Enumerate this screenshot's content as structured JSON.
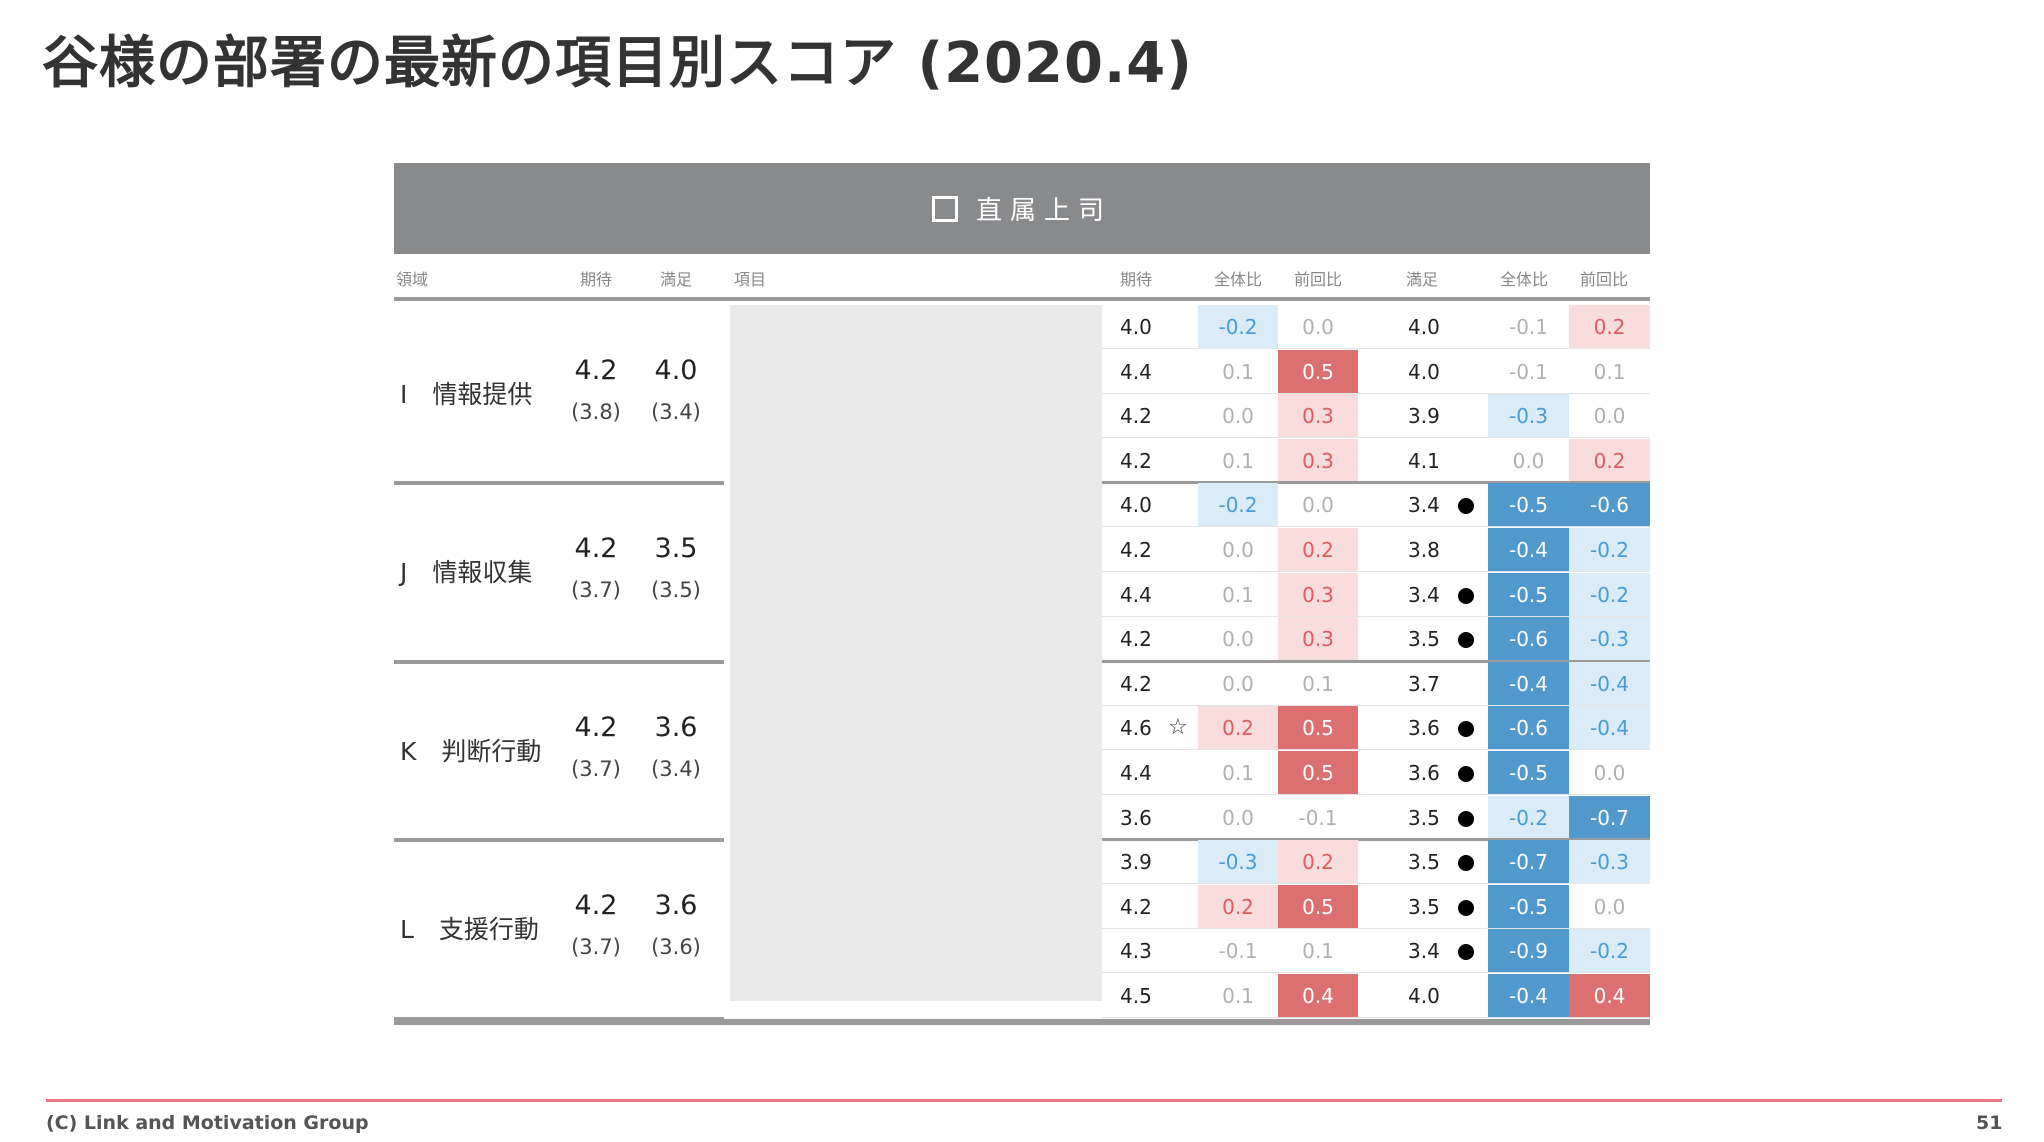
{
  "title": "谷様の部署の最新の項目別スコア (2020.4)",
  "banner": "直属上司",
  "headers": {
    "area": "領域",
    "exp": "期待",
    "sat": "満足",
    "item": "項目",
    "exp2": "期待",
    "total1": "全体比",
    "prev1": "前回比",
    "sat2": "満足",
    "total2": "全体比",
    "prev2": "前回比"
  },
  "colors": {
    "red_strong": "#dc6f6f",
    "red_medium": "#f0a7a9",
    "red_light": "#f9dcdc",
    "blue_strong": "#5199cc",
    "blue_light": "#d9ecf7",
    "blue_text": "#4a9bd6",
    "red_text": "#e05a64",
    "muted_text": "#b0b0b0"
  },
  "groups": [
    {
      "name": "I　情報提供",
      "exp": "4.2",
      "exp_prev": "(3.8)",
      "sat": "4.0",
      "sat_prev": "(3.4)",
      "rows": [
        {
          "exp": "4.0",
          "exp_total": "-0.2",
          "exp_prev": "0.0",
          "sat": "4.0",
          "sat_total": "-0.1",
          "sat_prev": "0.2",
          "mark": "",
          "star": ""
        },
        {
          "exp": "4.4",
          "exp_total": "0.1",
          "exp_prev": "0.5",
          "sat": "4.0",
          "sat_total": "-0.1",
          "sat_prev": "0.1",
          "mark": "",
          "star": ""
        },
        {
          "exp": "4.2",
          "exp_total": "0.0",
          "exp_prev": "0.3",
          "sat": "3.9",
          "sat_total": "-0.3",
          "sat_prev": "0.0",
          "mark": "",
          "star": ""
        },
        {
          "exp": "4.2",
          "exp_total": "0.1",
          "exp_prev": "0.3",
          "sat": "4.1",
          "sat_total": "0.0",
          "sat_prev": "0.2",
          "mark": "",
          "star": ""
        }
      ]
    },
    {
      "name": "J　情報収集",
      "exp": "4.2",
      "exp_prev": "(3.7)",
      "sat": "3.5",
      "sat_prev": "(3.5)",
      "rows": [
        {
          "exp": "4.0",
          "exp_total": "-0.2",
          "exp_prev": "0.0",
          "sat": "3.4",
          "sat_total": "-0.5",
          "sat_prev": "-0.6",
          "mark": "dot",
          "star": ""
        },
        {
          "exp": "4.2",
          "exp_total": "0.0",
          "exp_prev": "0.2",
          "sat": "3.8",
          "sat_total": "-0.4",
          "sat_prev": "-0.2",
          "mark": "",
          "star": ""
        },
        {
          "exp": "4.4",
          "exp_total": "0.1",
          "exp_prev": "0.3",
          "sat": "3.4",
          "sat_total": "-0.5",
          "sat_prev": "-0.2",
          "mark": "dot",
          "star": ""
        },
        {
          "exp": "4.2",
          "exp_total": "0.0",
          "exp_prev": "0.3",
          "sat": "3.5",
          "sat_total": "-0.6",
          "sat_prev": "-0.3",
          "mark": "dot",
          "star": ""
        }
      ]
    },
    {
      "name": "K　判断行動",
      "exp": "4.2",
      "exp_prev": "(3.7)",
      "sat": "3.6",
      "sat_prev": "(3.4)",
      "rows": [
        {
          "exp": "4.2",
          "exp_total": "0.0",
          "exp_prev": "0.1",
          "sat": "3.7",
          "sat_total": "-0.4",
          "sat_prev": "-0.4",
          "mark": "",
          "star": ""
        },
        {
          "exp": "4.6",
          "exp_total": "0.2",
          "exp_prev": "0.5",
          "sat": "3.6",
          "sat_total": "-0.6",
          "sat_prev": "-0.4",
          "mark": "dot",
          "star": "☆"
        },
        {
          "exp": "4.4",
          "exp_total": "0.1",
          "exp_prev": "0.5",
          "sat": "3.6",
          "sat_total": "-0.5",
          "sat_prev": "0.0",
          "mark": "dot",
          "star": ""
        },
        {
          "exp": "3.6",
          "exp_total": "0.0",
          "exp_prev": "-0.1",
          "sat": "3.5",
          "sat_total": "-0.2",
          "sat_prev": "-0.7",
          "mark": "dot",
          "star": ""
        }
      ]
    },
    {
      "name": "L　支援行動",
      "exp": "4.2",
      "exp_prev": "(3.7)",
      "sat": "3.6",
      "sat_prev": "(3.6)",
      "rows": [
        {
          "exp": "3.9",
          "exp_total": "-0.3",
          "exp_prev": "0.2",
          "sat": "3.5",
          "sat_total": "-0.7",
          "sat_prev": "-0.3",
          "mark": "dot",
          "star": ""
        },
        {
          "exp": "4.2",
          "exp_total": "0.2",
          "exp_prev": "0.5",
          "sat": "3.5",
          "sat_total": "-0.5",
          "sat_prev": "0.0",
          "mark": "dot",
          "star": ""
        },
        {
          "exp": "4.3",
          "exp_total": "-0.1",
          "exp_prev": "0.1",
          "sat": "3.4",
          "sat_total": "-0.9",
          "sat_prev": "-0.2",
          "mark": "dot",
          "star": ""
        },
        {
          "exp": "4.5",
          "exp_total": "0.1",
          "exp_prev": "0.4",
          "sat": "4.0",
          "sat_total": "-0.4",
          "sat_prev": "0.4",
          "mark": "",
          "star": ""
        }
      ]
    }
  ],
  "footer": {
    "copyright": "(C) Link and Motivation Group",
    "page": "51"
  }
}
